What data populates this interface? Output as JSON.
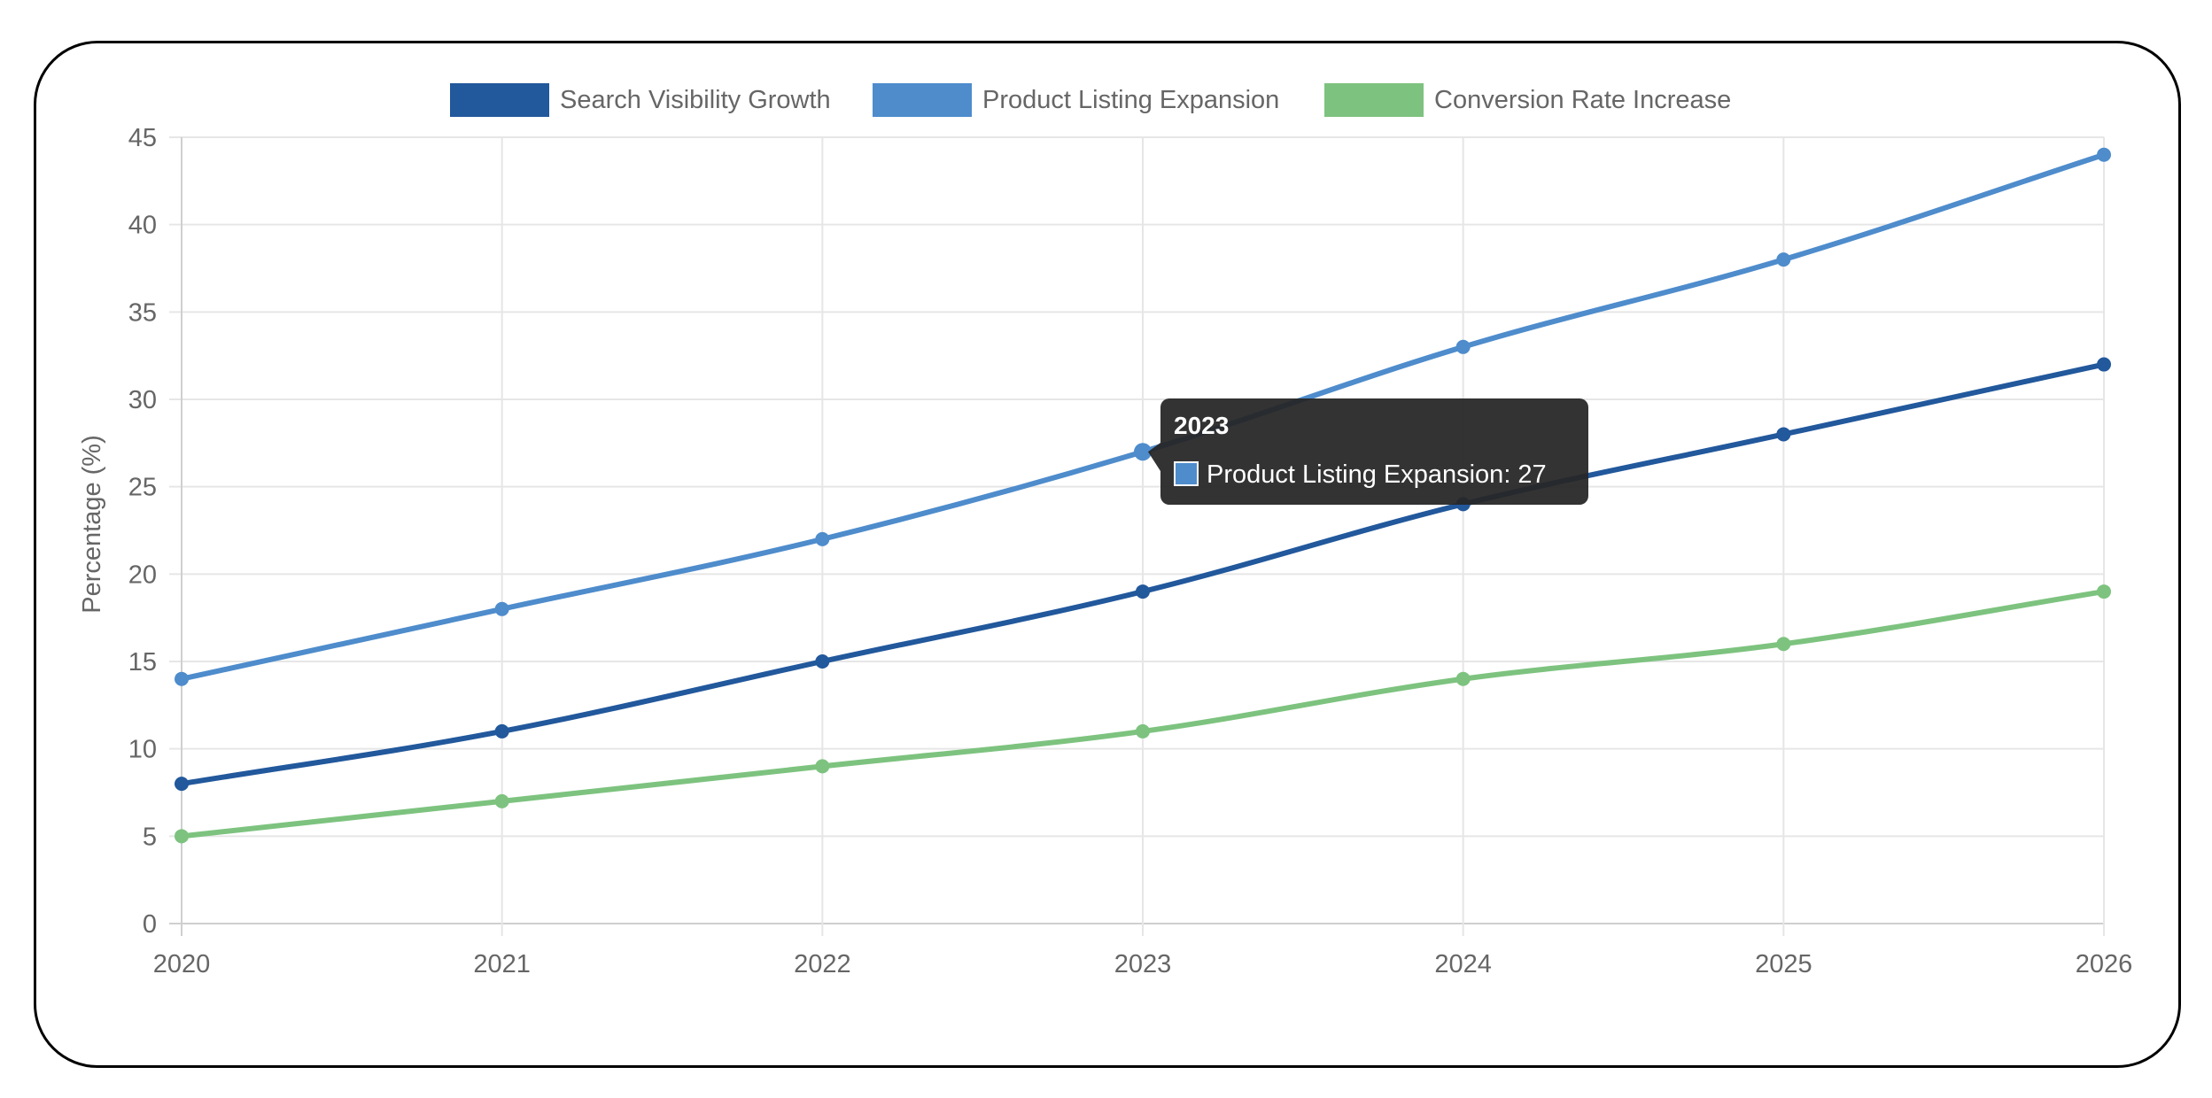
{
  "colors": {
    "search_visibility": "#22589c",
    "product_listing": "#4e8ccc",
    "conversion_rate": "#7dc37f",
    "grid": "#e6e6e6",
    "text": "#666666",
    "tooltip_bg": "#262626"
  },
  "tooltip": {
    "title": "2023",
    "body": "Product Listing Expansion: 27",
    "series_index": 1,
    "x": "2023"
  },
  "chart_data": {
    "type": "line",
    "x": [
      "2020",
      "2021",
      "2022",
      "2023",
      "2024",
      "2025",
      "2026"
    ],
    "ylabel": "Percentage (%)",
    "ylim": [
      0,
      45
    ],
    "yticks": [
      0,
      5,
      10,
      15,
      20,
      25,
      30,
      35,
      40,
      45
    ],
    "grid": true,
    "legend_position": "top",
    "series": [
      {
        "name": "Search Visibility Growth",
        "color": "#22589c",
        "values": [
          8,
          11,
          15,
          19,
          24,
          28,
          32
        ]
      },
      {
        "name": "Product Listing Expansion",
        "color": "#4e8ccc",
        "values": [
          14,
          18,
          22,
          27,
          33,
          38,
          44
        ]
      },
      {
        "name": "Conversion Rate Increase",
        "color": "#7dc37f",
        "values": [
          5,
          7,
          9,
          11,
          14,
          16,
          19
        ]
      }
    ]
  }
}
